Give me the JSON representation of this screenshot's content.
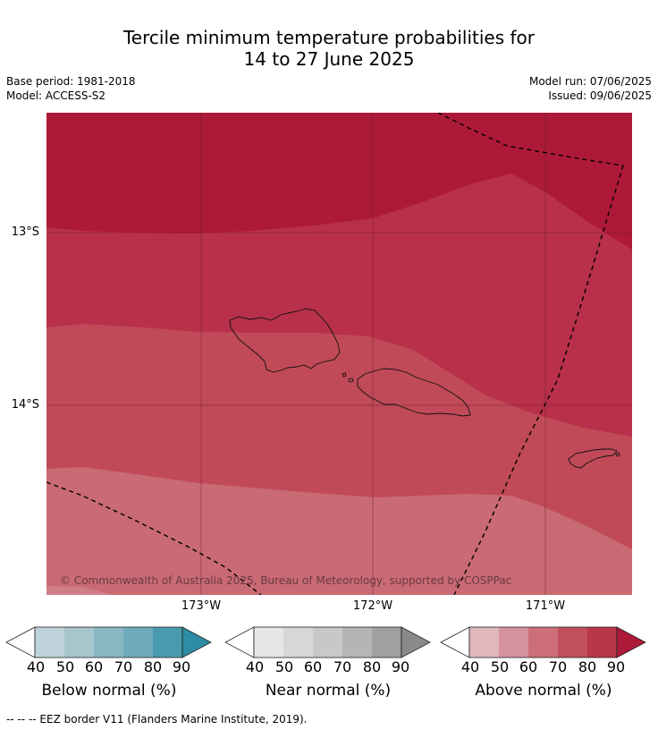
{
  "title_line1": "Tercile minimum temperature probabilities for",
  "title_line2": "14 to 27 June 2025",
  "base_period": "Base period: 1981-2018",
  "model": "Model: ACCESS-S2",
  "model_run": "Model run: 07/06/2025",
  "issued": "Issued: 09/06/2025",
  "lat_labels": [
    "13°S",
    "14°S"
  ],
  "lon_labels": [
    "173°W",
    "172°W",
    "171°W"
  ],
  "copyright": "© Commonwealth of Australia 2025, Bureau of Meteorology, supported by COSPPac",
  "colorbars": [
    {
      "title": "Below normal (%)",
      "ticks": [
        "40",
        "50",
        "60",
        "70",
        "80",
        "90"
      ],
      "colors": [
        "#bfd4da",
        "#a6c6cc",
        "#89b6c2",
        "#6eabbc",
        "#4a9aae",
        "#2e8ca4"
      ]
    },
    {
      "title": "Near normal (%)",
      "ticks": [
        "40",
        "50",
        "60",
        "70",
        "80",
        "90"
      ],
      "colors": [
        "#e6e6e6",
        "#d7d7d7",
        "#c8c8c8",
        "#b5b5b5",
        "#a0a0a0",
        "#8a8a8a"
      ]
    },
    {
      "title": "Above normal (%)",
      "ticks": [
        "40",
        "50",
        "60",
        "70",
        "80",
        "90"
      ],
      "colors": [
        "#e0b7bd",
        "#d5949d",
        "#cc6f78",
        "#c14f5c",
        "#b8354a",
        "#ad1a38"
      ]
    }
  ],
  "eez_note": "--  --  -- EEZ border V11 (Flanders Marine Institute, 2019).",
  "map_fill_colors": {
    "p90": "#ad1a38",
    "p80": "#b8304a",
    "p70": "#c04a57",
    "p60": "#c96a74"
  }
}
